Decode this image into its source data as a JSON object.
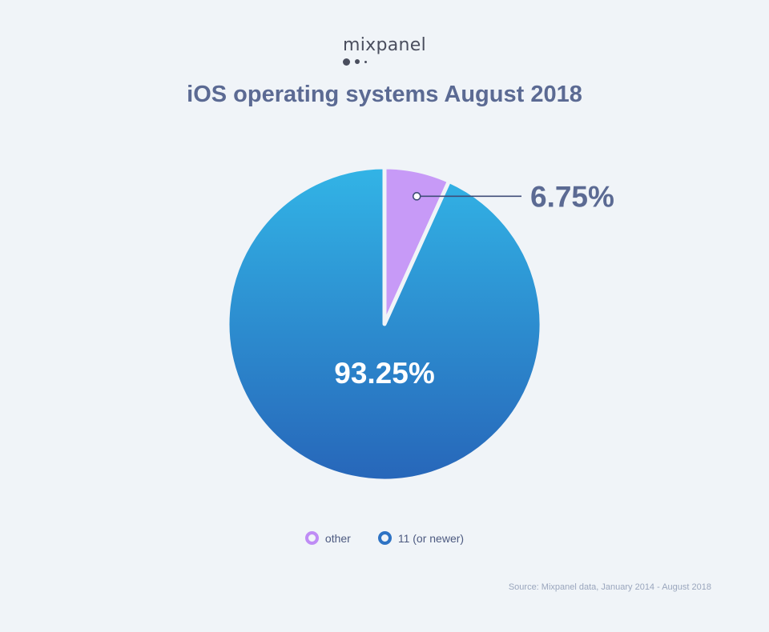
{
  "brand": {
    "logo_text": "mixpanel"
  },
  "chart_data": {
    "type": "pie",
    "title": "iOS operating systems August 2018",
    "slices": [
      {
        "name": "other",
        "value": 6.75,
        "label": "6.75%",
        "color": "#c79af7"
      },
      {
        "name": "11 (or newer)",
        "value": 93.25,
        "label": "93.25%",
        "color_top": "#32b4e6",
        "color_bottom": "#2766b9"
      }
    ],
    "legend": [
      {
        "label": "other",
        "color": "#bf8cf5"
      },
      {
        "label": "11 (or newer)",
        "color": "#2e73c4"
      }
    ],
    "legend_position": "bottom",
    "source": "Source: Mixpanel data, January 2014 - August 2018"
  }
}
